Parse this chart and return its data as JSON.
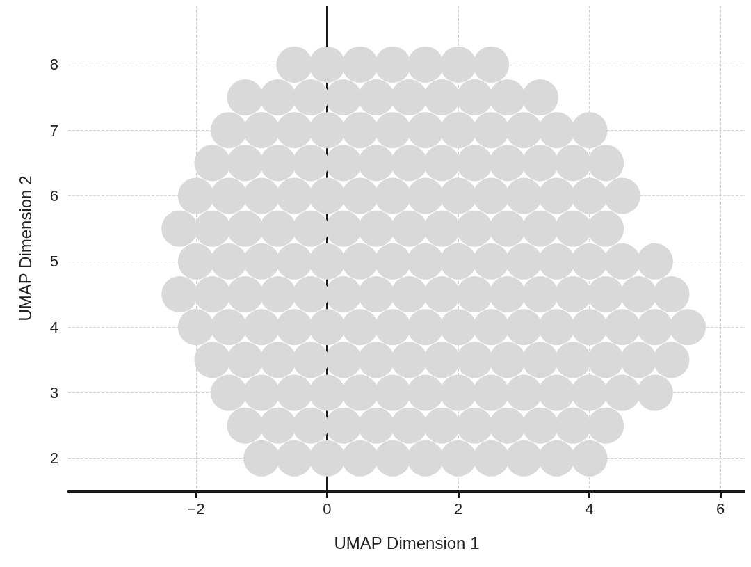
{
  "chart_data": {
    "type": "scatter",
    "xlabel": "UMAP Dimension 1",
    "ylabel": "UMAP Dimension 2",
    "xlim": [
      -3.95,
      6.38
    ],
    "ylim": [
      1.5,
      8.9
    ],
    "xticks": [
      {
        "value": -2,
        "label": "−2"
      },
      0,
      2,
      4,
      6
    ],
    "yticks": [
      2,
      3,
      4,
      5,
      6,
      7,
      8
    ],
    "grid": true,
    "marker": "circle",
    "series": [
      {
        "color": "#d9d9d9",
        "x": [
          -0.5,
          0,
          0.5,
          1,
          1.5,
          2,
          2.5,
          -1.25,
          -0.75,
          -0.25,
          0.25,
          0.75,
          1.25,
          1.75,
          2.25,
          2.75,
          3.25,
          -1.5,
          -1,
          -0.5,
          0,
          0.5,
          1,
          1.5,
          2,
          2.5,
          3,
          3.5,
          4,
          -1.75,
          -1.25,
          -0.75,
          -0.25,
          0.25,
          0.75,
          1.25,
          1.75,
          2.25,
          2.75,
          3.25,
          3.75,
          4.25,
          -2,
          -1.5,
          -1,
          -0.5,
          0,
          0.5,
          1,
          1.5,
          2,
          2.5,
          3,
          3.5,
          4,
          4.5,
          -2.25,
          -1.75,
          -1.25,
          -0.75,
          -0.25,
          0.25,
          0.75,
          1.25,
          1.75,
          2.25,
          2.75,
          3.25,
          3.75,
          4.25,
          -2,
          -1.5,
          -1,
          -0.5,
          0,
          0.5,
          1,
          1.5,
          2,
          2.5,
          3,
          3.5,
          4,
          4.5,
          5,
          -2.25,
          -1.75,
          -1.25,
          -0.75,
          -0.25,
          0.25,
          0.75,
          1.25,
          1.75,
          2.25,
          2.75,
          3.25,
          3.75,
          4.25,
          4.75,
          5.25,
          -2,
          -1.5,
          -1,
          -0.5,
          0,
          0.5,
          1,
          1.5,
          2,
          2.5,
          3,
          3.5,
          4,
          4.5,
          5,
          5.5,
          -1.75,
          -1.25,
          -0.75,
          -0.25,
          0.25,
          0.75,
          1.25,
          1.75,
          2.25,
          2.75,
          3.25,
          3.75,
          4.25,
          4.75,
          5.25,
          -1.5,
          -1,
          -0.5,
          0,
          0.5,
          1,
          1.5,
          2,
          2.5,
          3,
          3.5,
          4,
          4.5,
          5,
          -1.25,
          -0.75,
          -0.25,
          0.25,
          0.75,
          1.25,
          1.75,
          2.25,
          2.75,
          3.25,
          3.75,
          4.25,
          -1,
          -0.5,
          0,
          0.5,
          1,
          1.5,
          2,
          2.5,
          3,
          3.5,
          4
        ],
        "values": [
          8,
          8,
          8,
          8,
          8,
          8,
          8,
          7.5,
          7.5,
          7.5,
          7.5,
          7.5,
          7.5,
          7.5,
          7.5,
          7.5,
          7.5,
          7,
          7,
          7,
          7,
          7,
          7,
          7,
          7,
          7,
          7,
          7,
          7,
          6.5,
          6.5,
          6.5,
          6.5,
          6.5,
          6.5,
          6.5,
          6.5,
          6.5,
          6.5,
          6.5,
          6.5,
          6.5,
          6,
          6,
          6,
          6,
          6,
          6,
          6,
          6,
          6,
          6,
          6,
          6,
          6,
          6,
          5.5,
          5.5,
          5.5,
          5.5,
          5.5,
          5.5,
          5.5,
          5.5,
          5.5,
          5.5,
          5.5,
          5.5,
          5.5,
          5.5,
          5,
          5,
          5,
          5,
          5,
          5,
          5,
          5,
          5,
          5,
          5,
          5,
          5,
          5,
          5,
          4.5,
          4.5,
          4.5,
          4.5,
          4.5,
          4.5,
          4.5,
          4.5,
          4.5,
          4.5,
          4.5,
          4.5,
          4.5,
          4.5,
          4.5,
          4.5,
          4,
          4,
          4,
          4,
          4,
          4,
          4,
          4,
          4,
          4,
          4,
          4,
          4,
          4,
          4,
          4,
          3.5,
          3.5,
          3.5,
          3.5,
          3.5,
          3.5,
          3.5,
          3.5,
          3.5,
          3.5,
          3.5,
          3.5,
          3.5,
          3.5,
          3.5,
          3,
          3,
          3,
          3,
          3,
          3,
          3,
          3,
          3,
          3,
          3,
          3,
          3,
          3,
          2.5,
          2.5,
          2.5,
          2.5,
          2.5,
          2.5,
          2.5,
          2.5,
          2.5,
          2.5,
          2.5,
          2.5,
          2,
          2,
          2,
          2,
          2,
          2,
          2,
          2,
          2,
          2,
          2
        ]
      }
    ]
  }
}
